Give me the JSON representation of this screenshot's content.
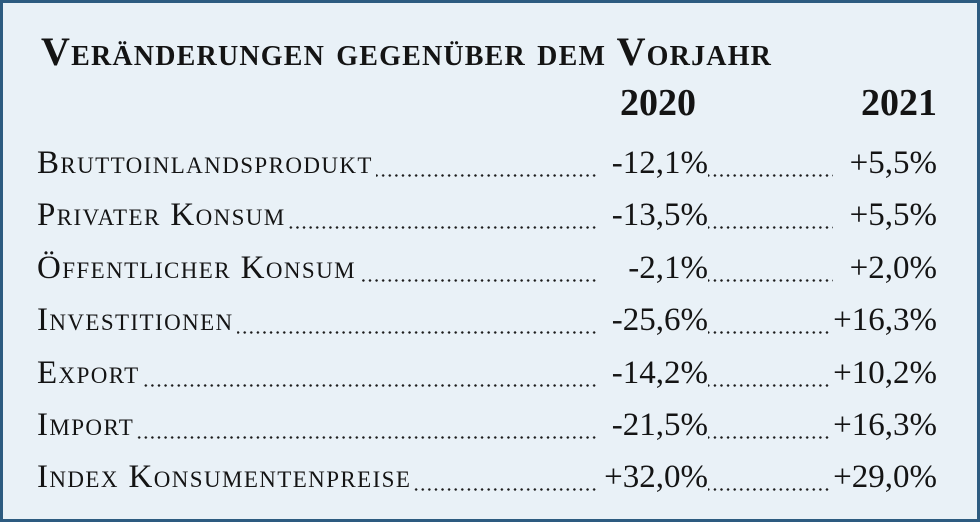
{
  "title": "Veränderungen gegenüber dem Vorjahr",
  "years": [
    "2020",
    "2021"
  ],
  "rows": [
    {
      "label": "Bruttoinlandsprodukt",
      "v2020": "-12,1%",
      "v2021": "+5,5%"
    },
    {
      "label": "Privater Konsum",
      "v2020": "-13,5%",
      "v2021": "+5,5%"
    },
    {
      "label": "Öffentlicher Konsum",
      "v2020": "-2,1%",
      "v2021": "+2,0%"
    },
    {
      "label": "Investitionen",
      "v2020": "-25,6%",
      "v2021": "+16,3%"
    },
    {
      "label": "Export",
      "v2020": "-14,2%",
      "v2021": "+10,2%"
    },
    {
      "label": "Import",
      "v2020": "-21,5%",
      "v2021": "+16,3%"
    },
    {
      "label": "Index Konsumentenpreise",
      "v2020": "+32,0%",
      "v2021": "+29,0%"
    }
  ],
  "colors": {
    "background": "#e9f1f7",
    "border": "#2d5b80",
    "text": "#141414"
  }
}
